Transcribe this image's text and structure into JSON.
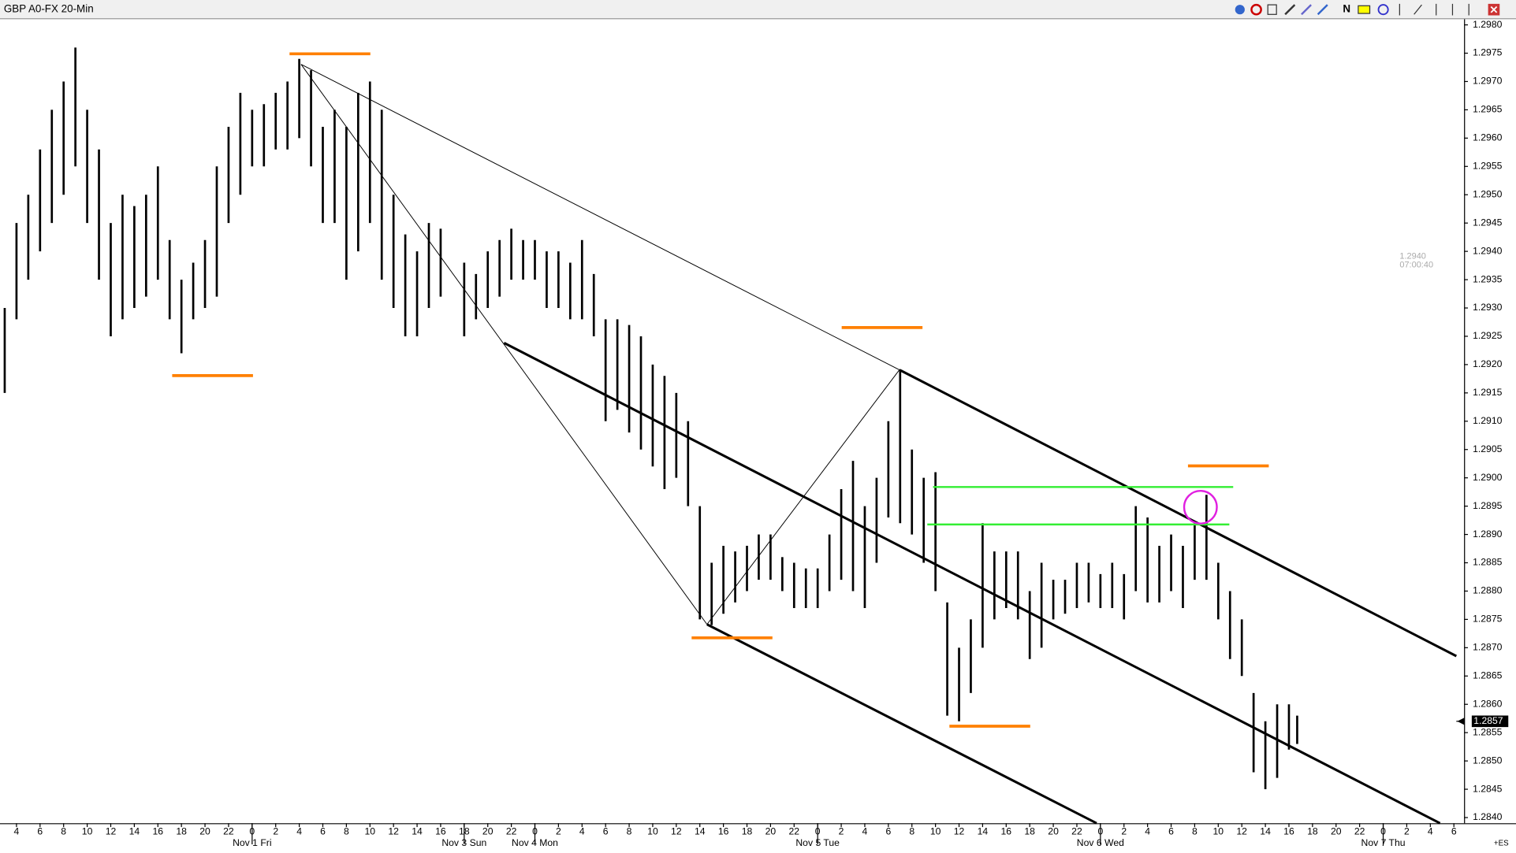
{
  "window_title": "GBP A0-FX 20-Min",
  "cursor_readout": [
    "1.2940",
    "07:00:40"
  ],
  "corner_label": "+ES",
  "chart_data": {
    "type": "ohlc",
    "color": "#000000",
    "xlim": [
      2.6,
      126.7
    ],
    "ylim": [
      1.2839,
      1.2981
    ],
    "last_price": 1.2857,
    "yticks": [
      {
        "value": 1.284,
        "label": "1.2840"
      },
      1.2845,
      {
        "value": 1.285,
        "label": "1.2850"
      },
      1.2855,
      {
        "value": 1.286,
        "label": "1.2860"
      },
      1.2865,
      {
        "value": 1.287,
        "label": "1.2870"
      },
      1.2875,
      {
        "value": 1.288,
        "label": "1.2880"
      },
      1.2885,
      {
        "value": 1.289,
        "label": "1.2890"
      },
      1.2895,
      {
        "value": 1.29,
        "label": "1.2900"
      },
      1.2905,
      {
        "value": 1.291,
        "label": "1.2910"
      },
      1.2915,
      {
        "value": 1.292,
        "label": "1.2920"
      },
      1.2925,
      {
        "value": 1.293,
        "label": "1.2930"
      },
      1.2935,
      {
        "value": 1.294,
        "label": "1.2940"
      },
      1.2945,
      {
        "value": 1.295,
        "label": "1.2950"
      },
      1.2955,
      {
        "value": 1.296,
        "label": "1.2960"
      },
      1.2965,
      {
        "value": 1.297,
        "label": "1.2970"
      },
      1.2975,
      {
        "value": 1.298,
        "label": "1.2980"
      }
    ],
    "xticks": [
      {
        "value": 4,
        "label": "4"
      },
      {
        "value": 6,
        "label": "6"
      },
      {
        "value": 8,
        "label": "8"
      },
      {
        "value": 10,
        "label": "10"
      },
      {
        "value": 12,
        "label": "12"
      },
      {
        "value": 14,
        "label": "14"
      },
      {
        "value": 16,
        "label": "16"
      },
      {
        "value": 18,
        "label": "18"
      },
      {
        "value": 20,
        "label": "20"
      },
      {
        "value": 22,
        "label": "22"
      },
      {
        "value": 24,
        "label": "0"
      },
      {
        "value": 26,
        "label": "2"
      },
      {
        "value": 28,
        "label": "4"
      },
      {
        "value": 30,
        "label": "6"
      },
      {
        "value": 32,
        "label": "8"
      },
      {
        "value": 34,
        "label": "10"
      },
      {
        "value": 36,
        "label": "12"
      },
      {
        "value": 38,
        "label": "14"
      },
      {
        "value": 40,
        "label": "16"
      },
      {
        "value": 42,
        "label": "18"
      },
      {
        "value": 44,
        "label": "20"
      },
      {
        "value": 46,
        "label": "22"
      },
      {
        "value": 48,
        "label": "0"
      },
      {
        "value": 50,
        "label": "2"
      },
      {
        "value": 52,
        "label": "4"
      },
      {
        "value": 54,
        "label": "6"
      },
      {
        "value": 56,
        "label": "8"
      },
      {
        "value": 58,
        "label": "10"
      },
      {
        "value": 60,
        "label": "12"
      },
      {
        "value": 62,
        "label": "14"
      },
      {
        "value": 64,
        "label": "16"
      },
      {
        "value": 66,
        "label": "18"
      },
      {
        "value": 68,
        "label": "20"
      },
      {
        "value": 70,
        "label": "22"
      },
      {
        "value": 72,
        "label": "0"
      },
      {
        "value": 74,
        "label": "2"
      },
      {
        "value": 76,
        "label": "4"
      },
      {
        "value": 78,
        "label": "6"
      },
      {
        "value": 80,
        "label": "8"
      },
      {
        "value": 82,
        "label": "10"
      },
      {
        "value": 84,
        "label": "12"
      },
      {
        "value": 86,
        "label": "14"
      },
      {
        "value": 88,
        "label": "16"
      },
      {
        "value": 90,
        "label": "18"
      },
      {
        "value": 92,
        "label": "20"
      },
      {
        "value": 94,
        "label": "22"
      },
      {
        "value": 96,
        "label": "0"
      },
      {
        "value": 98,
        "label": "2"
      },
      {
        "value": 100,
        "label": "4"
      },
      {
        "value": 102,
        "label": "6"
      },
      {
        "value": 104,
        "label": "8"
      },
      {
        "value": 106,
        "label": "10"
      },
      {
        "value": 108,
        "label": "12"
      },
      {
        "value": 110,
        "label": "14"
      },
      {
        "value": 112,
        "label": "16"
      },
      {
        "value": 114,
        "label": "18"
      },
      {
        "value": 116,
        "label": "20"
      },
      {
        "value": 118,
        "label": "22"
      },
      {
        "value": 120,
        "label": "0"
      },
      {
        "value": 122,
        "label": "2"
      },
      {
        "value": 124,
        "label": "4"
      },
      {
        "value": 126,
        "label": "6"
      }
    ],
    "x_date_labels": [
      {
        "value": 24,
        "label": "Nov 1 Fri"
      },
      {
        "value": 42,
        "label": "Nov 3 Sun"
      },
      {
        "value": 48,
        "label": "Nov 4 Mon"
      },
      {
        "value": 72,
        "label": "Nov 5 Tue"
      },
      {
        "value": 96,
        "label": "Nov 6 Wed"
      },
      {
        "value": 120,
        "label": "Nov 7 Thu"
      }
    ],
    "x": [
      3,
      4,
      5,
      6,
      7,
      8,
      9,
      10,
      11,
      12,
      13,
      14,
      15,
      16,
      17,
      18,
      19,
      20,
      21,
      22,
      23,
      24,
      25,
      26,
      27,
      28,
      29,
      30,
      31,
      32,
      33,
      34,
      35,
      36,
      37,
      38,
      39,
      40,
      42,
      43,
      44,
      45,
      46,
      47,
      48,
      49,
      50,
      51,
      52,
      53,
      54,
      55,
      56,
      57,
      58,
      59,
      60,
      61,
      62,
      63,
      64,
      65,
      66,
      67,
      68,
      69,
      70,
      71,
      72,
      73,
      74,
      75,
      76,
      77,
      78,
      79,
      80,
      81,
      82,
      83,
      84,
      85,
      86,
      87,
      88,
      89,
      90,
      91,
      92,
      93,
      94,
      95,
      96,
      97,
      98,
      99,
      100,
      101,
      102,
      103,
      104,
      105,
      106,
      107,
      108,
      109,
      110,
      111,
      112,
      112.7
    ],
    "high": [
      1.293,
      1.2945,
      1.295,
      1.2958,
      1.2965,
      1.297,
      1.2976,
      1.2965,
      1.2958,
      1.2945,
      1.295,
      1.2948,
      1.295,
      1.2955,
      1.2942,
      1.2935,
      1.2938,
      1.2942,
      1.2955,
      1.2962,
      1.2968,
      1.2965,
      1.2966,
      1.2968,
      1.297,
      1.2974,
      1.2972,
      1.2962,
      1.2965,
      1.2962,
      1.2968,
      1.297,
      1.2965,
      1.295,
      1.2943,
      1.294,
      1.2945,
      1.2944,
      1.2938,
      1.2936,
      1.294,
      1.2942,
      1.2944,
      1.2942,
      1.2942,
      1.294,
      1.294,
      1.2938,
      1.2942,
      1.2936,
      1.2928,
      1.2928,
      1.2927,
      1.2925,
      1.292,
      1.2918,
      1.2915,
      1.291,
      1.2895,
      1.2885,
      1.2888,
      1.2887,
      1.2888,
      1.289,
      1.289,
      1.2886,
      1.2885,
      1.2884,
      1.2884,
      1.289,
      1.2898,
      1.2903,
      1.2895,
      1.29,
      1.291,
      1.2919,
      1.2905,
      1.29,
      1.2901,
      1.2878,
      1.287,
      1.2875,
      1.2892,
      1.2887,
      1.2887,
      1.2887,
      1.288,
      1.2885,
      1.2882,
      1.2882,
      1.2885,
      1.2885,
      1.2883,
      1.2885,
      1.2883,
      1.2895,
      1.2893,
      1.2888,
      1.289,
      1.2888,
      1.2892,
      1.2897,
      1.2885,
      1.288,
      1.2875,
      1.2862,
      1.2857,
      1.286,
      1.286,
      1.2858
    ],
    "low": [
      1.2915,
      1.2928,
      1.2935,
      1.294,
      1.2945,
      1.295,
      1.2955,
      1.2945,
      1.2935,
      1.2925,
      1.2928,
      1.293,
      1.2932,
      1.2935,
      1.2928,
      1.2922,
      1.2928,
      1.293,
      1.2932,
      1.2945,
      1.295,
      1.2955,
      1.2955,
      1.2958,
      1.2958,
      1.296,
      1.2955,
      1.2945,
      1.2945,
      1.2935,
      1.294,
      1.2945,
      1.2935,
      1.293,
      1.2925,
      1.2925,
      1.293,
      1.2932,
      1.2925,
      1.2928,
      1.293,
      1.2932,
      1.2935,
      1.2935,
      1.2935,
      1.293,
      1.293,
      1.2928,
      1.2928,
      1.2925,
      1.291,
      1.2912,
      1.2908,
      1.2905,
      1.2902,
      1.2898,
      1.29,
      1.2895,
      1.2875,
      1.2874,
      1.2876,
      1.2878,
      1.288,
      1.2882,
      1.2882,
      1.288,
      1.2877,
      1.2877,
      1.2877,
      1.288,
      1.2882,
      1.288,
      1.2877,
      1.2885,
      1.2893,
      1.2892,
      1.289,
      1.2885,
      1.288,
      1.2858,
      1.2857,
      1.2862,
      1.287,
      1.2875,
      1.2877,
      1.2875,
      1.2868,
      1.287,
      1.2875,
      1.2876,
      1.2877,
      1.2878,
      1.2877,
      1.2877,
      1.2875,
      1.288,
      1.2878,
      1.2878,
      1.288,
      1.2877,
      1.2882,
      1.2882,
      1.2875,
      1.2868,
      1.2865,
      1.2848,
      1.2845,
      1.2847,
      1.2852,
      1.2853
    ]
  }
}
